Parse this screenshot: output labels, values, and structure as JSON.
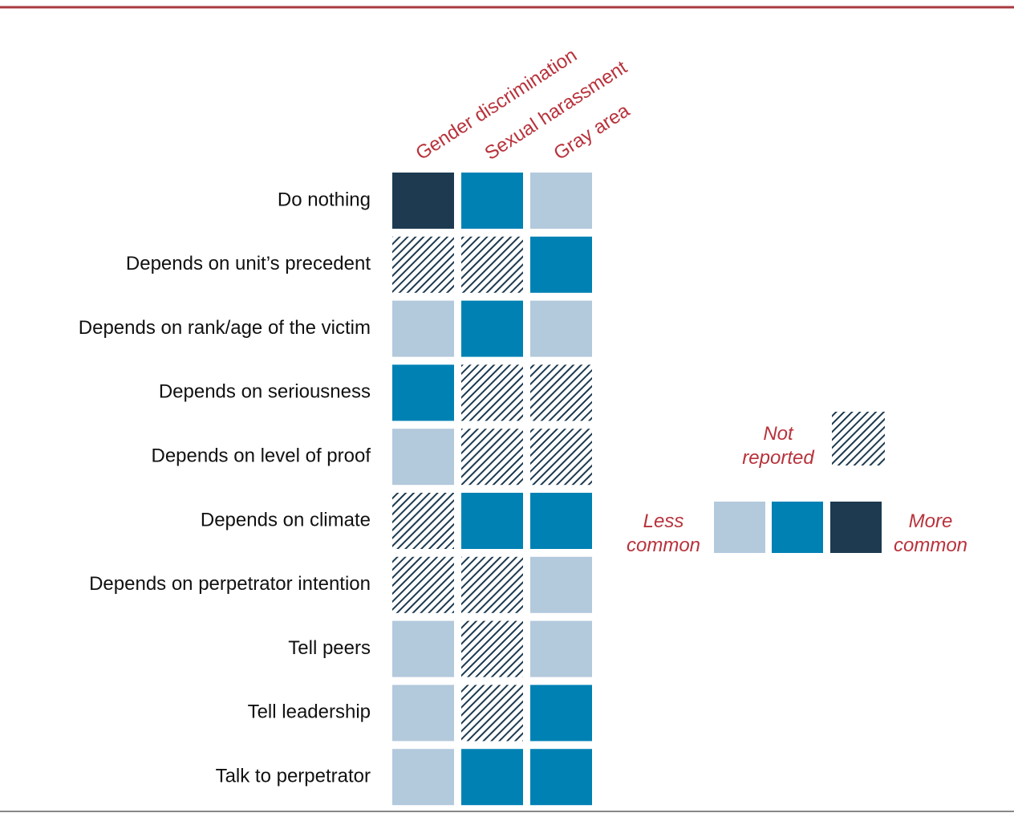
{
  "chart_data": {
    "type": "heatmap",
    "columns": [
      "Gender discrimination",
      "Sexual harassment",
      "Gray area"
    ],
    "rows": [
      "Do nothing",
      "Depends on unit’s precedent",
      "Depends on rank/age of the victim",
      "Depends on seriousness",
      "Depends on level of proof",
      "Depends on climate",
      "Depends on perpetrator intention",
      "Tell peers",
      "Tell leadership",
      "Talk to perpetrator"
    ],
    "values": [
      [
        3,
        2,
        1
      ],
      [
        null,
        null,
        2
      ],
      [
        1,
        2,
        1
      ],
      [
        2,
        null,
        null
      ],
      [
        1,
        null,
        null
      ],
      [
        null,
        2,
        2
      ],
      [
        null,
        null,
        1
      ],
      [
        1,
        null,
        1
      ],
      [
        1,
        null,
        2
      ],
      [
        1,
        2,
        2
      ]
    ],
    "scale": [
      {
        "value": 1,
        "color": "#b3c9dc"
      },
      {
        "value": 2,
        "color": "#0081b4"
      },
      {
        "value": 3,
        "color": "#1d3a50"
      }
    ],
    "missing_color": "#1d3a50",
    "legend": {
      "missing": "Not reported",
      "low": "Less common",
      "high": "More common"
    }
  }
}
